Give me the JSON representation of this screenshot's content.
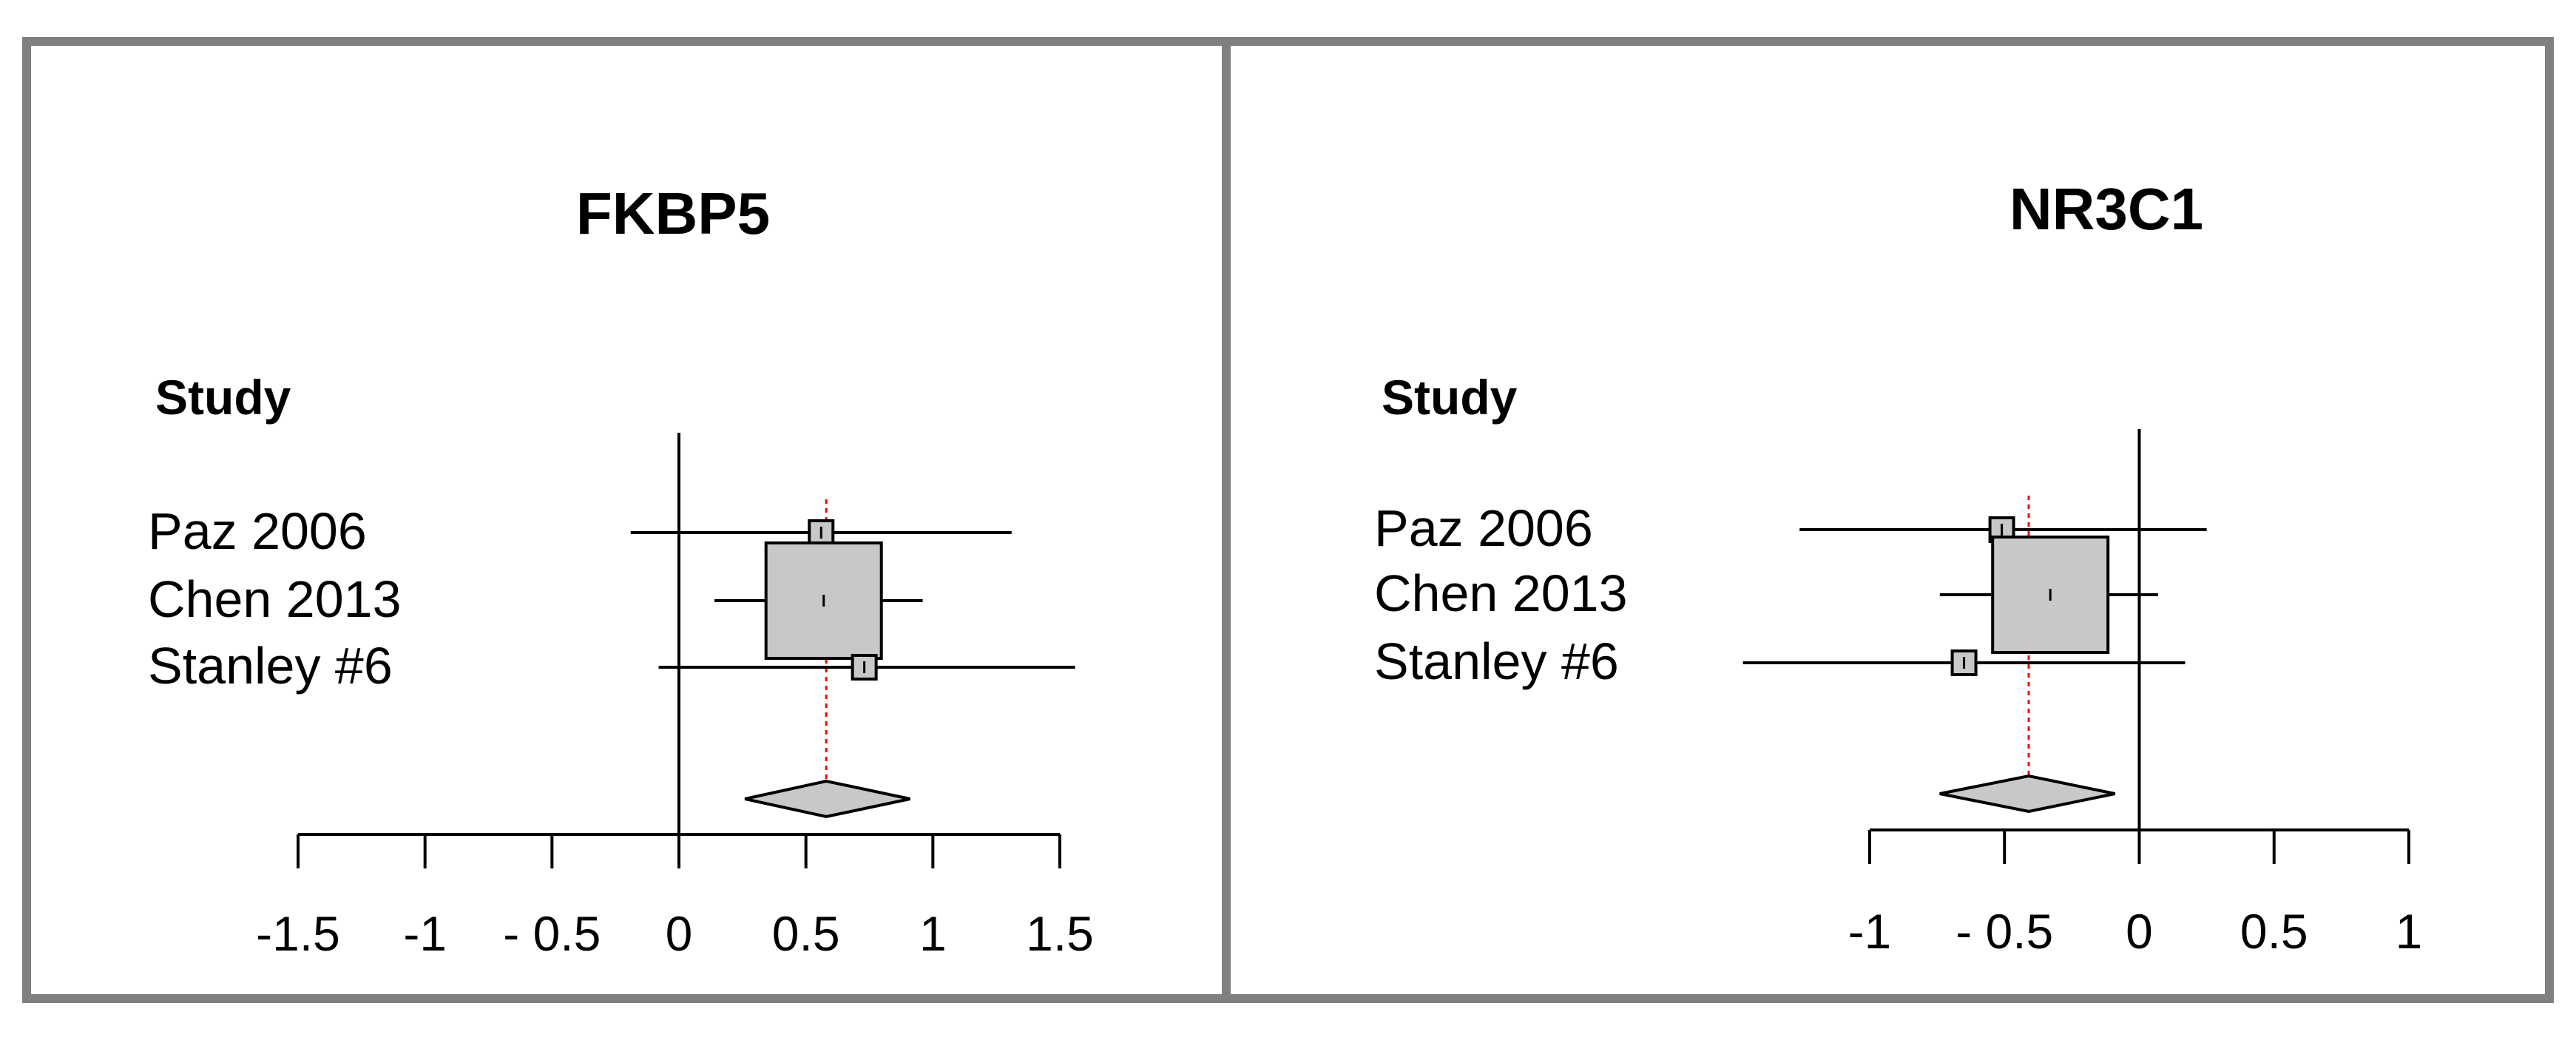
{
  "colors": {
    "frame": "#808080",
    "axis": "#000000",
    "ci_line": "#000000",
    "box_fill": "#c8c8c8",
    "summary_fill": "#c8c8c8",
    "summary_line": "#ff0000"
  },
  "chart_data": [
    {
      "type": "forest",
      "title": "FKBP5",
      "column_header": "Study",
      "null_value": 0,
      "xlim": [
        -1.5,
        1.5
      ],
      "tick_values": [
        -1.5,
        -1,
        -0.5,
        0,
        0.5,
        1,
        1.5
      ],
      "tick_labels": [
        "-1.5",
        "-1",
        "- 0.5",
        "0",
        "0.5",
        "1",
        "1.5"
      ],
      "studies": [
        {
          "label": "Paz 2006",
          "estimate": 0.56,
          "ci_lower": -0.19,
          "ci_upper": 1.31,
          "weight": 0.2
        },
        {
          "label": "Chen 2013",
          "estimate": 0.57,
          "ci_lower": 0.14,
          "ci_upper": 0.96,
          "weight": 0.6
        },
        {
          "label": "Stanley #6",
          "estimate": 0.73,
          "ci_lower": -0.08,
          "ci_upper": 1.56,
          "weight": 0.2
        }
      ],
      "summary": {
        "estimate": 0.58,
        "ci_lower": 0.26,
        "ci_upper": 0.91
      }
    },
    {
      "type": "forest",
      "title": "NR3C1",
      "column_header": "Study",
      "null_value": 0,
      "xlim": [
        -1,
        1
      ],
      "tick_values": [
        -1,
        -0.5,
        0,
        0.5,
        1
      ],
      "tick_labels": [
        "-1",
        "- 0.5",
        "0",
        "0.5",
        "1"
      ],
      "studies": [
        {
          "label": "Paz 2006",
          "estimate": -0.51,
          "ci_lower": -1.26,
          "ci_upper": 0.25,
          "weight": 0.2
        },
        {
          "label": "Chen 2013",
          "estimate": -0.33,
          "ci_lower": -0.74,
          "ci_upper": 0.07,
          "weight": 0.6
        },
        {
          "label": "Stanley #6",
          "estimate": -0.65,
          "ci_lower": -1.47,
          "ci_upper": 0.17,
          "weight": 0.2
        }
      ],
      "summary": {
        "estimate": -0.41,
        "ci_lower": -0.74,
        "ci_upper": -0.09
      }
    }
  ]
}
